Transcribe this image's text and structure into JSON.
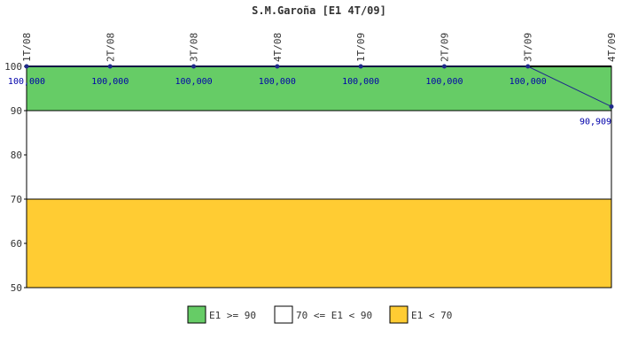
{
  "chart_data": {
    "type": "line",
    "title": "S.M.Garoña [E1 4T/09]",
    "categories": [
      "1T/08",
      "2T/08",
      "3T/08",
      "4T/08",
      "1T/09",
      "2T/09",
      "3T/09",
      "4T/09"
    ],
    "series": [
      {
        "values": [
          100,
          100,
          100,
          100,
          100,
          100,
          100,
          90.909
        ],
        "labels": [
          "100,000",
          "100,000",
          "100,000",
          "100,000",
          "100,000",
          "100,000",
          "100,000",
          "90,909"
        ],
        "color": "#1f2a8a"
      }
    ],
    "ylim": [
      50,
      100
    ],
    "yticks": [
      "50",
      "60",
      "70",
      "80",
      "90",
      "100"
    ],
    "bands": [
      {
        "from": 90,
        "to": 100,
        "color": "#66cc66",
        "label": "E1 >= 90"
      },
      {
        "from": 70,
        "to": 90,
        "color": "#ffffff",
        "label": "70 <= E1 < 90"
      },
      {
        "from": 50,
        "to": 70,
        "color": "#ffcc33",
        "label": "E1 < 70"
      }
    ],
    "legend_position": "bottom",
    "grid": false
  }
}
